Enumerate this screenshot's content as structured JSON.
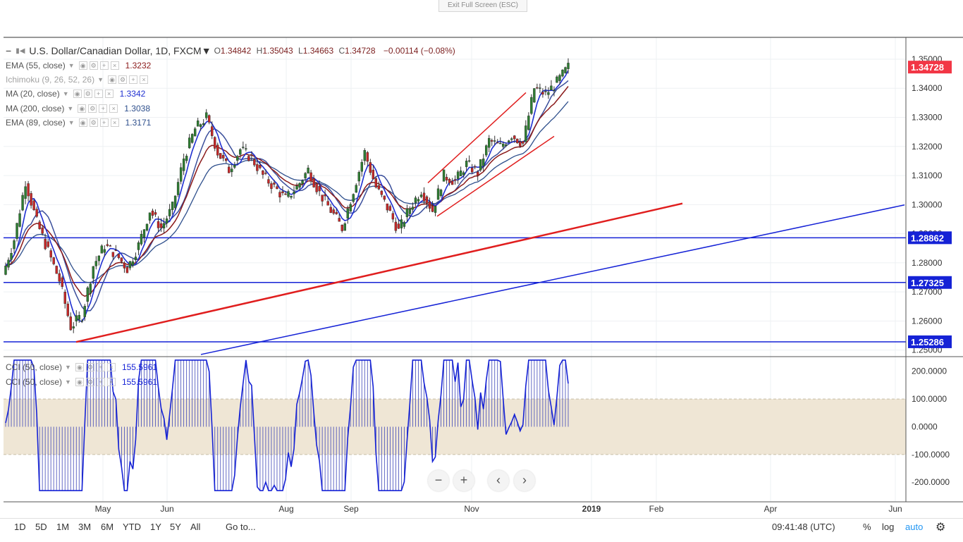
{
  "window": {
    "exit_label": "Exit Full Screen (ESC)"
  },
  "header": {
    "symbol": "U.S. Dollar/Canadian Dollar, 1D, FXCM",
    "ohlc": {
      "o_label": "O",
      "o": "1.34842",
      "h_label": "H",
      "h": "1.35043",
      "l_label": "L",
      "l": "1.34663",
      "c_label": "C",
      "c": "1.34728",
      "change": "−0.00114 (−0.08%)"
    }
  },
  "indicators": [
    {
      "name": "EMA (55, close)",
      "value": "1.3232",
      "color": "#8b1a1a"
    },
    {
      "name": "Ichimoku (9, 26, 52, 26)",
      "value": "",
      "color": "#9e9e9e"
    },
    {
      "name": "MA (20, close)",
      "value": "1.3342",
      "color": "#1f2fd1"
    },
    {
      "name": "MA (200, close)",
      "value": "1.3038",
      "color": "#2e4f8c"
    },
    {
      "name": "EMA (89, close)",
      "value": "1.3171",
      "color": "#2e4f8c"
    }
  ],
  "cci_legend": [
    {
      "name": "CCI (50, close)",
      "value": "155.5961"
    },
    {
      "name": "CCI (50, close)",
      "value": "155.5961"
    }
  ],
  "chart_data": {
    "type": "candlestick",
    "price_axis": {
      "ticks": [
        "1.25000",
        "1.26000",
        "1.27000",
        "1.28000",
        "1.29000",
        "1.30000",
        "1.31000",
        "1.32000",
        "1.33000",
        "1.34000",
        "1.35000"
      ],
      "range": [
        1.248,
        1.3575
      ]
    },
    "time_axis": {
      "labels": [
        "May",
        "Jun",
        "Aug",
        "Sep",
        "Nov",
        "2019",
        "Feb",
        "Apr",
        "Jun"
      ]
    },
    "price_labels": [
      {
        "value": 1.34728,
        "text": "1.34728",
        "color": "#f23645"
      },
      {
        "value": 1.28862,
        "text": "1.28862",
        "color": "#1522d6"
      },
      {
        "value": 1.27325,
        "text": "1.27325",
        "color": "#1522d6"
      },
      {
        "value": 1.25286,
        "text": "1.25286",
        "color": "#1522d6"
      }
    ],
    "horizontal_lines": [
      1.28862,
      1.27325,
      1.25286
    ],
    "candles_weekly_approx": [
      [
        1.276,
        1.292,
        1.274,
        1.288
      ],
      [
        1.288,
        1.311,
        1.286,
        1.308
      ],
      [
        1.308,
        1.312,
        1.29,
        1.294
      ],
      [
        1.294,
        1.296,
        1.28,
        1.284
      ],
      [
        1.284,
        1.292,
        1.272,
        1.274
      ],
      [
        1.274,
        1.278,
        1.256,
        1.258
      ],
      [
        1.258,
        1.265,
        1.254,
        1.262
      ],
      [
        1.262,
        1.28,
        1.26,
        1.279
      ],
      [
        1.279,
        1.289,
        1.275,
        1.286
      ],
      [
        1.286,
        1.298,
        1.278,
        1.283
      ],
      [
        1.283,
        1.29,
        1.274,
        1.278
      ],
      [
        1.278,
        1.288,
        1.275,
        1.286
      ],
      [
        1.286,
        1.3,
        1.284,
        1.298
      ],
      [
        1.298,
        1.306,
        1.288,
        1.292
      ],
      [
        1.292,
        1.301,
        1.286,
        1.299
      ],
      [
        1.299,
        1.318,
        1.298,
        1.316
      ],
      [
        1.316,
        1.329,
        1.312,
        1.326
      ],
      [
        1.326,
        1.338,
        1.322,
        1.33
      ],
      [
        1.33,
        1.333,
        1.314,
        1.318
      ],
      [
        1.318,
        1.324,
        1.308,
        1.312
      ],
      [
        1.312,
        1.321,
        1.306,
        1.319
      ],
      [
        1.319,
        1.329,
        1.312,
        1.316
      ],
      [
        1.316,
        1.32,
        1.306,
        1.31
      ],
      [
        1.31,
        1.314,
        1.3,
        1.306
      ],
      [
        1.306,
        1.309,
        1.298,
        1.302
      ],
      [
        1.302,
        1.31,
        1.298,
        1.306
      ],
      [
        1.306,
        1.317,
        1.304,
        1.312
      ],
      [
        1.312,
        1.316,
        1.3,
        1.304
      ],
      [
        1.304,
        1.308,
        1.294,
        1.298
      ],
      [
        1.298,
        1.303,
        1.288,
        1.292
      ],
      [
        1.292,
        1.306,
        1.291,
        1.305
      ],
      [
        1.305,
        1.322,
        1.304,
        1.318
      ],
      [
        1.318,
        1.32,
        1.302,
        1.306
      ],
      [
        1.306,
        1.308,
        1.296,
        1.299
      ],
      [
        1.299,
        1.302,
        1.288,
        1.291
      ],
      [
        1.291,
        1.306,
        1.278,
        1.299
      ],
      [
        1.299,
        1.308,
        1.294,
        1.305
      ],
      [
        1.305,
        1.308,
        1.295,
        1.298
      ],
      [
        1.298,
        1.312,
        1.296,
        1.31
      ],
      [
        1.31,
        1.315,
        1.304,
        1.308
      ],
      [
        1.308,
        1.316,
        1.306,
        1.314
      ],
      [
        1.314,
        1.32,
        1.308,
        1.311
      ],
      [
        1.311,
        1.326,
        1.31,
        1.322
      ],
      [
        1.322,
        1.327,
        1.315,
        1.32
      ],
      [
        1.32,
        1.329,
        1.316,
        1.324
      ],
      [
        1.324,
        1.332,
        1.317,
        1.321
      ],
      [
        1.321,
        1.344,
        1.319,
        1.34
      ],
      [
        1.34,
        1.345,
        1.334,
        1.338
      ],
      [
        1.338,
        1.346,
        1.333,
        1.342
      ],
      [
        1.342,
        1.3505,
        1.34,
        1.3473
      ]
    ],
    "cci": {
      "axis_ticks": [
        "200.0000",
        "100.0000",
        "0.0000",
        "-100.0000",
        "-200.0000"
      ],
      "range": [
        -240,
        250
      ],
      "last": 155.5961
    }
  },
  "navigation": {
    "zoom_out": "−",
    "zoom_in": "+",
    "scroll_left": "‹",
    "scroll_right": "›"
  },
  "bottombar": {
    "timeframes": [
      "1D",
      "5D",
      "1M",
      "3M",
      "6M",
      "YTD",
      "1Y",
      "5Y",
      "All"
    ],
    "goto": "Go to...",
    "clock": "09:41:48 (UTC)",
    "percent": "%",
    "log": "log",
    "auto": "auto"
  }
}
